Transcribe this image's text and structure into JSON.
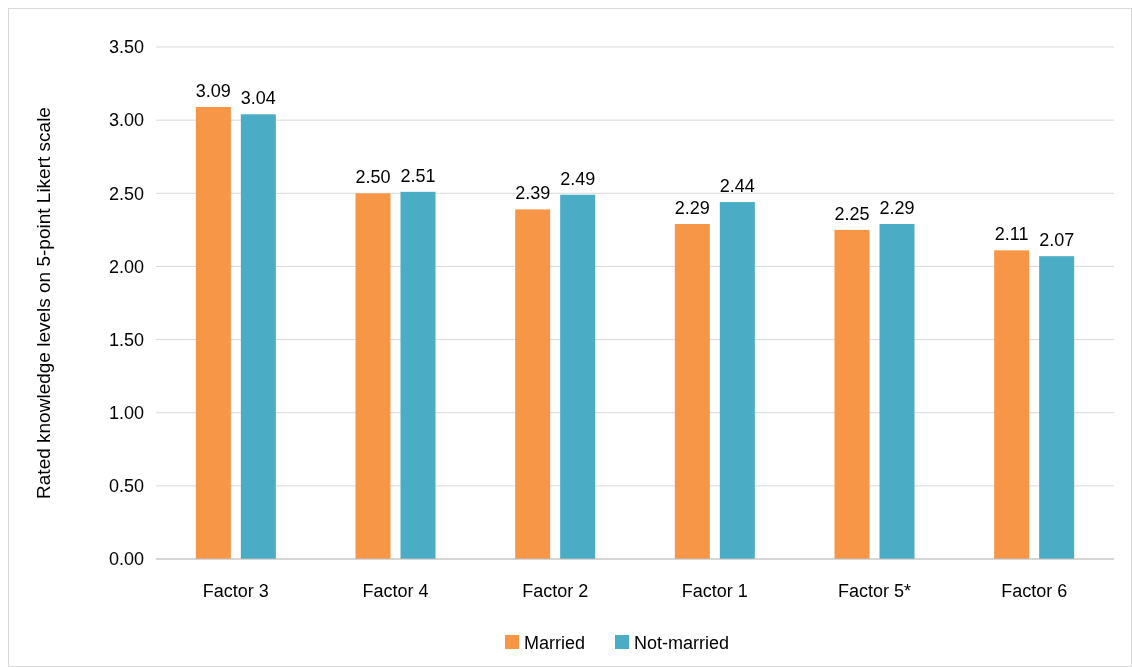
{
  "chart_data": {
    "type": "bar",
    "ylabel": "Rated knowledge levels on 5-point Likert scale",
    "categories": [
      "Factor 3",
      "Factor 4",
      "Factor 2",
      "Factor 1",
      "Factor 5*",
      "Factor 6"
    ],
    "series": [
      {
        "name": "Married",
        "color": "#f79646",
        "values": [
          3.09,
          2.5,
          2.39,
          2.29,
          2.25,
          2.11
        ],
        "value_labels": [
          "3.09",
          "2.50",
          "2.39",
          "2.29",
          "2.25",
          "2.11"
        ]
      },
      {
        "name": "Not-married",
        "color": "#4bacc6",
        "values": [
          3.04,
          2.51,
          2.49,
          2.44,
          2.29,
          2.07
        ],
        "value_labels": [
          "3.04",
          "2.51",
          "2.49",
          "2.44",
          "2.29",
          "2.07"
        ]
      }
    ],
    "ylim": [
      0,
      3.5
    ],
    "yticks": [
      {
        "value": 0,
        "label": "0.00"
      },
      {
        "value": 0.5,
        "label": "0.50"
      },
      {
        "value": 1,
        "label": "1.00"
      },
      {
        "value": 1.5,
        "label": "1.50"
      },
      {
        "value": 2,
        "label": "2.00"
      },
      {
        "value": 2.5,
        "label": "2.50"
      },
      {
        "value": 3,
        "label": "3.00"
      },
      {
        "value": 3.5,
        "label": "3.50"
      }
    ],
    "grid": "y",
    "legend": "bottom"
  }
}
